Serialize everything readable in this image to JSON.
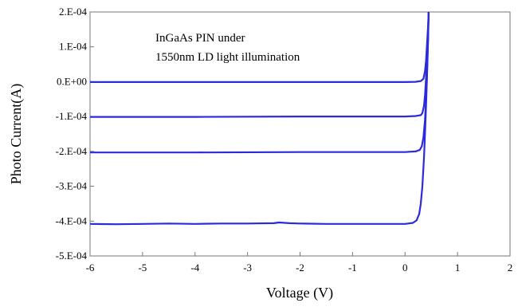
{
  "chart_data": {
    "type": "line",
    "title": "",
    "xlabel": "Voltage (V)",
    "ylabel": "Photo Current(A)",
    "xlim": [
      -6,
      2
    ],
    "ylim": [
      -0.0005,
      0.0002
    ],
    "x_ticks": [
      -6,
      -5,
      -4,
      -3,
      -2,
      -1,
      0,
      1,
      2
    ],
    "x_tick_labels": [
      "-6",
      "-5",
      "-4",
      "-3",
      "-2",
      "-1",
      "0",
      "1",
      "2"
    ],
    "y_ticks": [
      0.0002,
      0.0001,
      0.0,
      -0.0001,
      -0.0002,
      -0.0003,
      -0.0004,
      -0.0005
    ],
    "y_tick_labels": [
      "2.E-04",
      "1.E-04",
      "0.E+00",
      "-1.E-04",
      "-2.E-04",
      "-3.E-04",
      "-4.E-04",
      "-5.E-04"
    ],
    "grid": false,
    "series_color": "#2b2bdc",
    "annotation": [
      "InGaAs PIN under",
      "1550nm LD light illumination"
    ],
    "series": [
      {
        "x": [
          -6,
          -4,
          -2,
          0,
          0.2,
          0.3,
          0.35,
          0.38,
          0.4,
          0.42,
          0.44,
          0.45
        ],
        "y": [
          -1e-06,
          -1e-06,
          -1e-06,
          -1e-06,
          -5e-07,
          2e-06,
          8e-06,
          3e-05,
          6e-05,
          0.00011,
          0.00016,
          0.0002
        ]
      },
      {
        "x": [
          -6,
          -4,
          -2,
          0,
          0.2,
          0.3,
          0.33,
          0.36,
          0.38,
          0.4,
          0.42,
          0.44,
          0.45
        ],
        "y": [
          -0.000101,
          -0.000101,
          -0.0001,
          -0.0001,
          -9.85e-05,
          -9.6e-05,
          -9e-05,
          -7e-05,
          -4e-05,
          1e-05,
          7e-05,
          0.00015,
          0.0002
        ]
      },
      {
        "x": [
          -6,
          -4,
          -2,
          0,
          0.2,
          0.28,
          0.32,
          0.35,
          0.38,
          0.4,
          0.42,
          0.44,
          0.45
        ],
        "y": [
          -0.000203,
          -0.000203,
          -0.000202,
          -0.000202,
          -0.0002,
          -0.000196,
          -0.000185,
          -0.00016,
          -0.00011,
          -5e-05,
          3e-05,
          0.00013,
          0.0002
        ]
      },
      {
        "x": [
          -6,
          -5.5,
          -5,
          -4.5,
          -4,
          -3.5,
          -3,
          -2.5,
          -2.4,
          -2.2,
          -2,
          -1.5,
          -1,
          -0.5,
          0,
          0.15,
          0.22,
          0.27,
          0.3,
          0.33,
          0.36,
          0.38,
          0.4,
          0.42,
          0.44,
          0.45
        ],
        "y": [
          -0.000408,
          -0.000409,
          -0.000408,
          -0.000407,
          -0.000408,
          -0.000407,
          -0.000407,
          -0.000406,
          -0.000404,
          -0.000406,
          -0.000407,
          -0.000408,
          -0.000408,
          -0.000408,
          -0.000408,
          -0.000405,
          -0.000398,
          -0.00038,
          -0.00035,
          -0.0003,
          -0.00022,
          -0.00015,
          -7e-05,
          2e-05,
          0.00012,
          0.0002
        ]
      }
    ]
  }
}
